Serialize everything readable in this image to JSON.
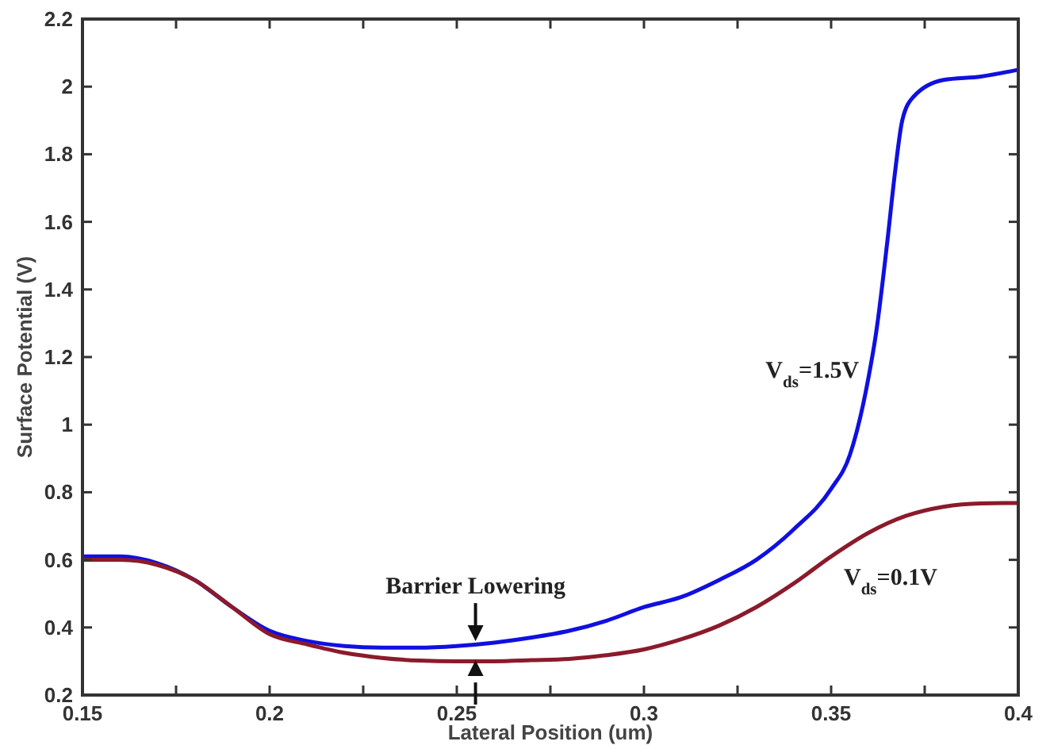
{
  "chart_data": {
    "type": "line",
    "xlabel": "Lateral Position (um)",
    "ylabel": "Surface Potential (V)",
    "xlim": [
      0.15,
      0.4
    ],
    "ylim": [
      0.2,
      2.2
    ],
    "xticks": [
      0.15,
      {
        "value": 0.175,
        "label": null
      },
      0.2,
      {
        "value": 0.225,
        "label": null
      },
      0.25,
      {
        "value": 0.275,
        "label": null
      },
      0.3,
      {
        "value": 0.325,
        "label": null
      },
      0.35,
      {
        "value": 0.375,
        "label": null
      },
      0.4
    ],
    "yticks": [
      0.2,
      0.4,
      0.6,
      0.8,
      1,
      1.2,
      1.4,
      1.6,
      1.8,
      2,
      2.2
    ],
    "grid": false,
    "marker": "none",
    "line_style": "solid",
    "series": [
      {
        "name": "V$_{ds}$=1.5V",
        "color": "#1010e0",
        "x": [
          0.15,
          0.16,
          0.17,
          0.18,
          0.19,
          0.2,
          0.21,
          0.22,
          0.23,
          0.24,
          0.25,
          0.26,
          0.27,
          0.28,
          0.29,
          0.3,
          0.31,
          0.32,
          0.33,
          0.34,
          0.35,
          0.355,
          0.36,
          0.362,
          0.365,
          0.367,
          0.369,
          0.372,
          0.38,
          0.39,
          0.4
        ],
        "values": [
          0.61,
          0.61,
          0.59,
          0.54,
          0.46,
          0.39,
          0.36,
          0.345,
          0.34,
          0.34,
          0.345,
          0.355,
          0.37,
          0.39,
          0.42,
          0.46,
          0.49,
          0.54,
          0.6,
          0.69,
          0.81,
          0.91,
          1.14,
          1.27,
          1.54,
          1.74,
          1.9,
          1.97,
          2.02,
          2.03,
          2.05
        ]
      },
      {
        "name": "V$_{ds}$=0.1V",
        "color": "#8b1a2b",
        "x": [
          0.15,
          0.16,
          0.17,
          0.18,
          0.19,
          0.2,
          0.21,
          0.22,
          0.23,
          0.24,
          0.25,
          0.26,
          0.27,
          0.28,
          0.29,
          0.3,
          0.31,
          0.32,
          0.33,
          0.34,
          0.35,
          0.36,
          0.37,
          0.38,
          0.39,
          0.4
        ],
        "values": [
          0.6,
          0.6,
          0.585,
          0.54,
          0.46,
          0.38,
          0.35,
          0.325,
          0.31,
          0.302,
          0.3,
          0.3,
          0.303,
          0.307,
          0.318,
          0.335,
          0.365,
          0.405,
          0.46,
          0.53,
          0.61,
          0.68,
          0.73,
          0.757,
          0.767,
          0.768
        ]
      }
    ],
    "annotations": [
      {
        "text": "Barrier Lowering",
        "x": 0.255,
        "y": 0.35
      }
    ]
  }
}
